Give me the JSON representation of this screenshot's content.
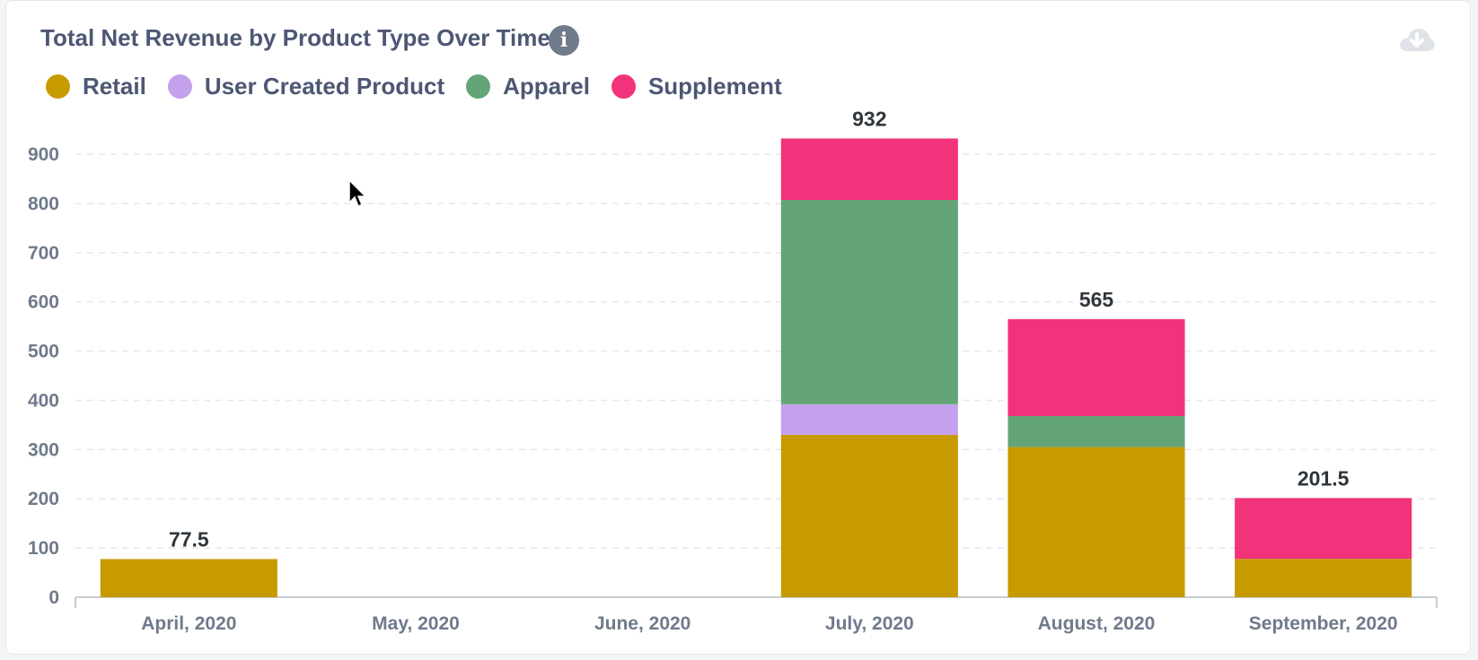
{
  "card": {
    "title": "Total Net Revenue by Product Type Over Time",
    "info_icon": "info-icon",
    "download_icon": "cloud-download-icon"
  },
  "legend": [
    {
      "name": "Retail",
      "color": "#c79a00"
    },
    {
      "name": "User Created Product",
      "color": "#c3a1ec"
    },
    {
      "name": "Apparel",
      "color": "#63a577"
    },
    {
      "name": "Supplement",
      "color": "#f2327a"
    }
  ],
  "chart_data": {
    "type": "bar",
    "stacked": true,
    "categories": [
      "April, 2020",
      "May, 2020",
      "June, 2020",
      "July, 2020",
      "August, 2020",
      "September, 2020"
    ],
    "series": [
      {
        "name": "Retail",
        "color": "#c79a00",
        "values": [
          77.5,
          0,
          0,
          330,
          305,
          78
        ]
      },
      {
        "name": "User Created Product",
        "color": "#c3a1ec",
        "values": [
          0,
          0,
          0,
          62,
          0,
          0
        ]
      },
      {
        "name": "Apparel",
        "color": "#63a577",
        "values": [
          0,
          0,
          0,
          415,
          63,
          0
        ]
      },
      {
        "name": "Supplement",
        "color": "#f2327a",
        "values": [
          0,
          0,
          0,
          125,
          197,
          123.5
        ]
      }
    ],
    "totals": [
      "77.5",
      "",
      "",
      "932",
      "565",
      "201.5"
    ],
    "ylim": [
      0,
      900
    ],
    "yticks": [
      0,
      100,
      200,
      300,
      400,
      500,
      600,
      700,
      800,
      900
    ],
    "grid": true,
    "legend_position": "top-left"
  }
}
